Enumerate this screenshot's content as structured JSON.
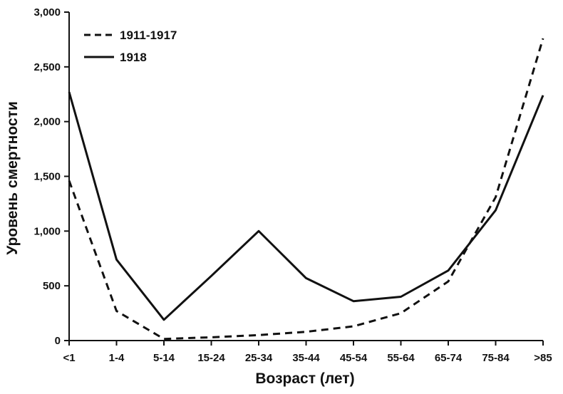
{
  "chart_data": {
    "type": "line",
    "xlabel": "Возраст (лет)",
    "ylabel": "Уровень смертности",
    "categories": [
      "<1",
      "1-4",
      "5-14",
      "15-24",
      "25-34",
      "35-44",
      "45-54",
      "55-64",
      "65-74",
      "75-84",
      ">85"
    ],
    "ylim": [
      0,
      3000
    ],
    "yticks": [
      "0",
      "500",
      "1,000",
      "1,500",
      "2,000",
      "2,500",
      "3,000"
    ],
    "grid": false,
    "legend_position": "top-left",
    "series": [
      {
        "name": "1911-1917",
        "style": "dashed",
        "color": "#111111",
        "values": [
          1460,
          270,
          15,
          30,
          50,
          80,
          130,
          250,
          540,
          1310,
          2760
        ]
      },
      {
        "name": "1918",
        "style": "solid",
        "color": "#111111",
        "values": [
          2270,
          740,
          190,
          590,
          1000,
          570,
          360,
          400,
          640,
          1190,
          2240
        ]
      }
    ]
  }
}
